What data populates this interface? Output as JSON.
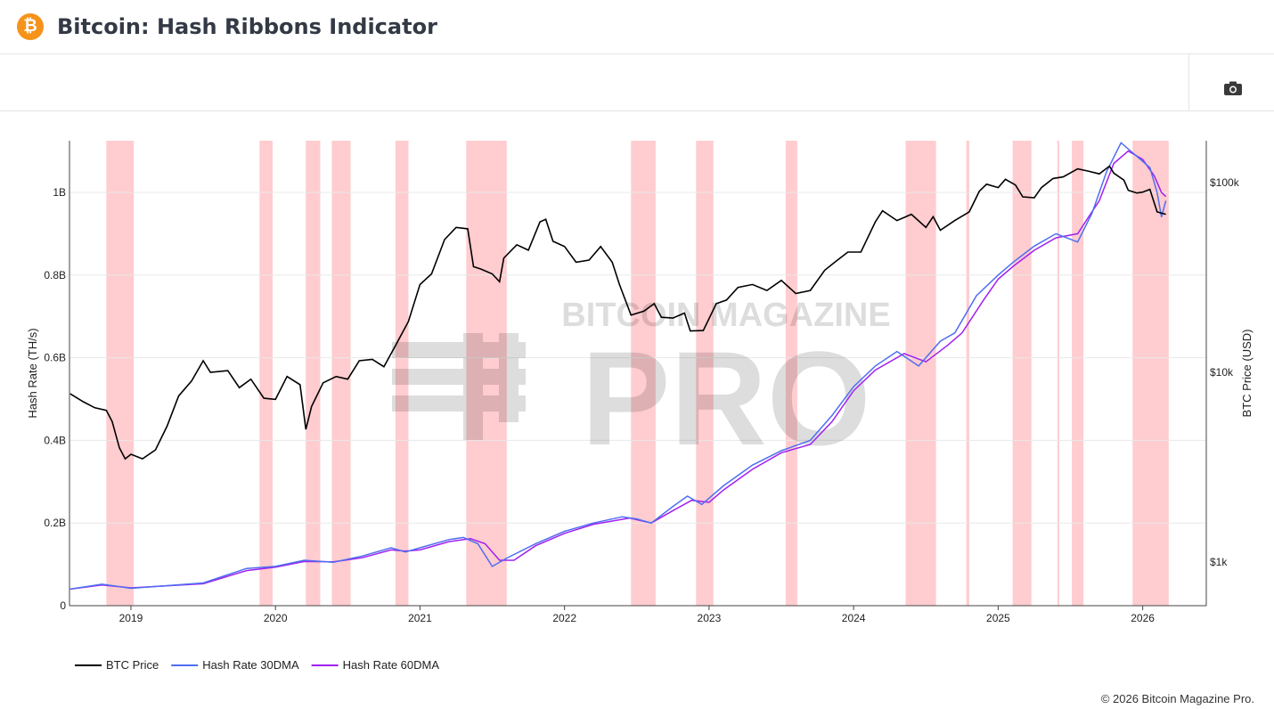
{
  "header": {
    "title": "Bitcoin: Hash Ribbons Indicator",
    "logo_symbol": "₿"
  },
  "toolbar": {
    "camera_icon": "camera-icon"
  },
  "watermark": {
    "line1": "BITCOIN MAGAZINE",
    "line2": "PRO"
  },
  "footer": {
    "copyright": "© 2026 Bitcoin Magazine Pro."
  },
  "colors": {
    "price": "#000000",
    "hr30": "#4f6ef0",
    "hr60": "#a020f0",
    "ribbon": "#ffcccf",
    "accent": "#f7931a"
  },
  "chart_data": {
    "type": "line",
    "title": "Bitcoin: Hash Ribbons Indicator",
    "xlabel": "",
    "ylabel_left": "Hash Rate (TH/s)",
    "ylabel_right": "BTC Price (USD)",
    "xlim": [
      2018.575,
      2026.44
    ],
    "ylim_left": [
      0,
      1.125
    ],
    "ylim_right_log": [
      589,
      166000
    ],
    "x_ticks": [
      {
        "v": 2019,
        "label": "2019"
      },
      {
        "v": 2020,
        "label": "2020"
      },
      {
        "v": 2021,
        "label": "2021"
      },
      {
        "v": 2022,
        "label": "2022"
      },
      {
        "v": 2023,
        "label": "2023"
      },
      {
        "v": 2024,
        "label": "2024"
      },
      {
        "v": 2025,
        "label": "2025"
      },
      {
        "v": 2026,
        "label": "2026"
      }
    ],
    "y_ticks_left": [
      {
        "v": 0,
        "label": "0"
      },
      {
        "v": 0.2,
        "label": "0.2B"
      },
      {
        "v": 0.4,
        "label": "0.4B"
      },
      {
        "v": 0.6,
        "label": "0.6B"
      },
      {
        "v": 0.8,
        "label": "0.8B"
      },
      {
        "v": 1.0,
        "label": "1B"
      }
    ],
    "y_ticks_right": [
      {
        "v": 1000,
        "label": "$1k"
      },
      {
        "v": 10000,
        "label": "$10k"
      },
      {
        "v": 100000,
        "label": "$100k"
      }
    ],
    "legend": {
      "placement": "bottom-left",
      "entries": [
        {
          "key": "price",
          "label": "BTC Price"
        },
        {
          "key": "hr30",
          "label": "Hash Rate 30DMA"
        },
        {
          "key": "hr60",
          "label": "Hash Rate 60DMA"
        }
      ]
    },
    "ribbons": [
      [
        2018.83,
        2019.02
      ],
      [
        2019.89,
        2019.98
      ],
      [
        2020.21,
        2020.31
      ],
      [
        2020.39,
        2020.52
      ],
      [
        2020.83,
        2020.92
      ],
      [
        2021.32,
        2021.6
      ],
      [
        2022.46,
        2022.63
      ],
      [
        2022.91,
        2023.03
      ],
      [
        2023.53,
        2023.61
      ],
      [
        2024.36,
        2024.57
      ],
      [
        2024.78,
        2024.8
      ],
      [
        2025.1,
        2025.23
      ],
      [
        2025.41,
        2025.42
      ],
      [
        2025.51,
        2025.59
      ],
      [
        2025.93,
        2026.18
      ]
    ],
    "series": [
      {
        "key": "price",
        "name": "BTC Price",
        "axis": "right",
        "x": [
          2018.58,
          2018.67,
          2018.75,
          2018.83,
          2018.87,
          2018.92,
          2018.96,
          2019.0,
          2019.08,
          2019.17,
          2019.25,
          2019.33,
          2019.42,
          2019.5,
          2019.55,
          2019.67,
          2019.75,
          2019.83,
          2019.92,
          2020.0,
          2020.08,
          2020.17,
          2020.21,
          2020.25,
          2020.33,
          2020.42,
          2020.5,
          2020.58,
          2020.67,
          2020.75,
          2020.83,
          2020.92,
          2021.0,
          2021.08,
          2021.17,
          2021.25,
          2021.33,
          2021.37,
          2021.42,
          2021.5,
          2021.55,
          2021.58,
          2021.67,
          2021.75,
          2021.83,
          2021.87,
          2021.92,
          2022.0,
          2022.08,
          2022.17,
          2022.25,
          2022.33,
          2022.38,
          2022.46,
          2022.55,
          2022.62,
          2022.67,
          2022.75,
          2022.83,
          2022.87,
          2022.96,
          2023.05,
          2023.12,
          2023.2,
          2023.3,
          2023.4,
          2023.5,
          2023.6,
          2023.7,
          2023.8,
          2023.87,
          2023.96,
          2024.05,
          2024.15,
          2024.2,
          2024.3,
          2024.4,
          2024.5,
          2024.55,
          2024.6,
          2024.7,
          2024.8,
          2024.87,
          2024.92,
          2025.0,
          2025.05,
          2025.12,
          2025.17,
          2025.25,
          2025.3,
          2025.38,
          2025.45,
          2025.55,
          2025.62,
          2025.7,
          2025.77,
          2025.8,
          2025.87,
          2025.9,
          2025.96,
          2026.0,
          2026.05,
          2026.08,
          2026.1,
          2026.16
        ],
        "y": [
          7700,
          7000,
          6500,
          6300,
          5500,
          4000,
          3500,
          3700,
          3500,
          3900,
          5200,
          7500,
          9000,
          11500,
          10000,
          10200,
          8300,
          9200,
          7300,
          7200,
          9500,
          8600,
          5000,
          6600,
          8800,
          9500,
          9200,
          11500,
          11700,
          10700,
          13800,
          18500,
          29000,
          33000,
          50000,
          58000,
          57000,
          36000,
          35000,
          33000,
          30000,
          40000,
          47000,
          44000,
          62000,
          64000,
          49000,
          46000,
          38000,
          39000,
          46000,
          38000,
          29000,
          20000,
          21000,
          23000,
          19500,
          19300,
          20500,
          16500,
          16600,
          23000,
          24000,
          28000,
          29000,
          27000,
          30500,
          26000,
          27000,
          34500,
          38000,
          43000,
          43000,
          62000,
          71000,
          63000,
          68000,
          58000,
          66000,
          56000,
          63000,
          70000,
          90000,
          98000,
          94000,
          104000,
          97000,
          84000,
          83000,
          94000,
          105000,
          107000,
          118000,
          115000,
          111000,
          122000,
          112000,
          103000,
          91000,
          88000,
          89000,
          92000,
          78000,
          70000,
          68000
        ]
      },
      {
        "key": "hr30",
        "name": "Hash Rate 30DMA",
        "axis": "left",
        "x": [
          2018.58,
          2018.8,
          2019.0,
          2019.5,
          2019.8,
          2020.0,
          2020.2,
          2020.4,
          2020.6,
          2020.8,
          2020.9,
          2021.0,
          2021.2,
          2021.3,
          2021.4,
          2021.5,
          2021.6,
          2021.8,
          2022.0,
          2022.2,
          2022.4,
          2022.5,
          2022.6,
          2022.75,
          2022.85,
          2022.95,
          2023.1,
          2023.3,
          2023.5,
          2023.7,
          2023.85,
          2024.0,
          2024.15,
          2024.3,
          2024.45,
          2024.6,
          2024.7,
          2024.85,
          2025.0,
          2025.1,
          2025.25,
          2025.4,
          2025.55,
          2025.65,
          2025.75,
          2025.85,
          2025.95,
          2026.05,
          2026.1,
          2026.13,
          2026.16
        ],
        "y": [
          0.04,
          0.052,
          0.042,
          0.055,
          0.09,
          0.095,
          0.11,
          0.105,
          0.12,
          0.14,
          0.13,
          0.14,
          0.16,
          0.165,
          0.15,
          0.095,
          0.115,
          0.15,
          0.18,
          0.2,
          0.215,
          0.21,
          0.2,
          0.24,
          0.265,
          0.245,
          0.29,
          0.34,
          0.375,
          0.4,
          0.46,
          0.53,
          0.58,
          0.615,
          0.58,
          0.64,
          0.66,
          0.75,
          0.8,
          0.83,
          0.87,
          0.9,
          0.88,
          0.95,
          1.05,
          1.12,
          1.09,
          1.06,
          1.0,
          0.94,
          0.98
        ]
      },
      {
        "key": "hr60",
        "name": "Hash Rate 60DMA",
        "axis": "left",
        "x": [
          2018.58,
          2018.8,
          2019.0,
          2019.5,
          2019.8,
          2020.0,
          2020.2,
          2020.4,
          2020.6,
          2020.8,
          2020.9,
          2021.0,
          2021.2,
          2021.35,
          2021.45,
          2021.55,
          2021.65,
          2021.8,
          2022.0,
          2022.2,
          2022.45,
          2022.6,
          2022.75,
          2022.88,
          2023.0,
          2023.1,
          2023.3,
          2023.5,
          2023.7,
          2023.85,
          2024.0,
          2024.15,
          2024.35,
          2024.5,
          2024.65,
          2024.75,
          2024.9,
          2025.0,
          2025.1,
          2025.25,
          2025.4,
          2025.55,
          2025.7,
          2025.8,
          2025.9,
          2026.0,
          2026.08,
          2026.13,
          2026.16
        ],
        "y": [
          0.04,
          0.05,
          0.043,
          0.053,
          0.085,
          0.093,
          0.107,
          0.106,
          0.116,
          0.135,
          0.132,
          0.135,
          0.155,
          0.162,
          0.15,
          0.11,
          0.11,
          0.145,
          0.175,
          0.197,
          0.212,
          0.2,
          0.23,
          0.255,
          0.25,
          0.28,
          0.33,
          0.37,
          0.39,
          0.445,
          0.52,
          0.57,
          0.61,
          0.59,
          0.63,
          0.66,
          0.74,
          0.79,
          0.82,
          0.86,
          0.89,
          0.9,
          0.98,
          1.07,
          1.1,
          1.08,
          1.04,
          1.0,
          0.99
        ]
      }
    ]
  }
}
